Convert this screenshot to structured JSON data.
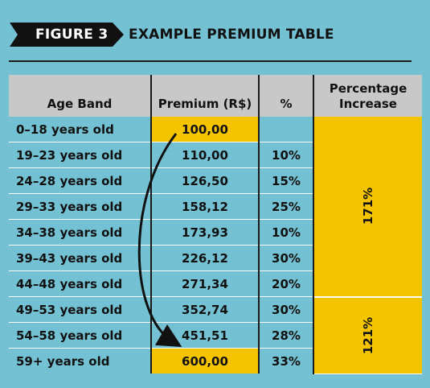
{
  "figure": {
    "label": "FIGURE 3",
    "title": "EXAMPLE PREMIUM TABLE"
  },
  "colors": {
    "background": "#73c1d3",
    "header": "#c8c8c8",
    "highlight": "#f5c400",
    "text": "#111111"
  },
  "table": {
    "columns": [
      "Age Band",
      "Premium (R$)",
      "%",
      "Percentage Increase"
    ],
    "rows": [
      {
        "age": "0–18 years old",
        "premium": "100,00",
        "pct": ""
      },
      {
        "age": "19–23 years old",
        "premium": "110,00",
        "pct": "10%"
      },
      {
        "age": "24–28 years old",
        "premium": "126,50",
        "pct": "15%"
      },
      {
        "age": "29–33 years old",
        "premium": "158,12",
        "pct": "25%"
      },
      {
        "age": "34–38 years old",
        "premium": "173,93",
        "pct": "10%"
      },
      {
        "age": "39–43 years old",
        "premium": "226,12",
        "pct": "30%"
      },
      {
        "age": "44–48 years old",
        "premium": "271,34",
        "pct": "20%"
      },
      {
        "age": "49–53 years old",
        "premium": "352,74",
        "pct": "30%"
      },
      {
        "age": "54–58 years old",
        "premium": "451,51",
        "pct": "28%"
      },
      {
        "age": "59+ years old",
        "premium": "600,00",
        "pct": "33%"
      }
    ],
    "increases": [
      {
        "value": "171%",
        "from_row": 0,
        "to_row": 6
      },
      {
        "value": "121%",
        "from_row": 7,
        "to_row": 9
      }
    ]
  }
}
